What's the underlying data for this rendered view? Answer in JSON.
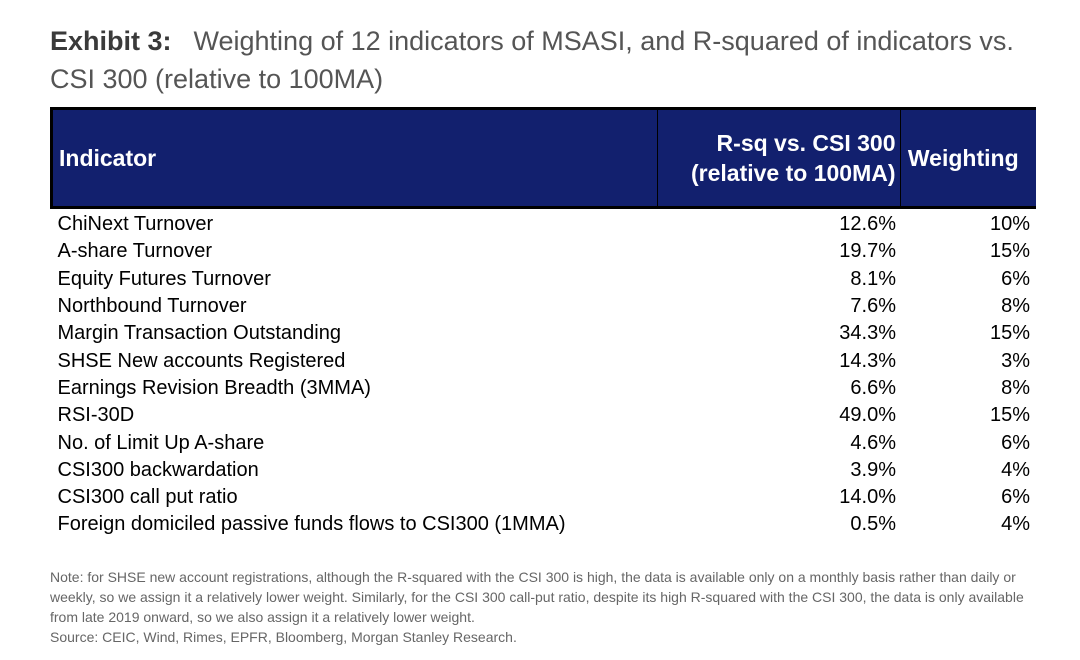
{
  "exhibit": {
    "label": "Exhibit 3:",
    "title": "Weighting of 12 indicators of MSASI, and R-squared of indicators vs. CSI 300 (relative to 100MA)"
  },
  "table": {
    "headers": {
      "indicator": "Indicator",
      "rsq_line1": "R-sq vs. CSI 300",
      "rsq_line2": "(relative to 100MA)",
      "weighting": "Weighting"
    },
    "rows": [
      {
        "indicator": "ChiNext Turnover",
        "rsq": "12.6%",
        "weighting": "10%"
      },
      {
        "indicator": "A-share Turnover",
        "rsq": "19.7%",
        "weighting": "15%"
      },
      {
        "indicator": "Equity Futures Turnover",
        "rsq": "8.1%",
        "weighting": "6%"
      },
      {
        "indicator": "Northbound Turnover",
        "rsq": "7.6%",
        "weighting": "8%"
      },
      {
        "indicator": "Margin Transaction Outstanding",
        "rsq": "34.3%",
        "weighting": "15%"
      },
      {
        "indicator": "SHSE New accounts Registered",
        "rsq": "14.3%",
        "weighting": "3%"
      },
      {
        "indicator": "Earnings Revision Breadth (3MMA)",
        "rsq": "6.6%",
        "weighting": "8%"
      },
      {
        "indicator": "RSI-30D",
        "rsq": "49.0%",
        "weighting": "15%"
      },
      {
        "indicator": "No. of Limit Up A-share",
        "rsq": "4.6%",
        "weighting": "6%"
      },
      {
        "indicator": "CSI300 backwardation",
        "rsq": "3.9%",
        "weighting": "4%"
      },
      {
        "indicator": "CSI300 call put ratio",
        "rsq": "14.0%",
        "weighting": "6%"
      },
      {
        "indicator": "Foreign domiciled passive funds flows to CSI300 (1MMA)",
        "rsq": "0.5%",
        "weighting": "4%"
      }
    ]
  },
  "footnote": {
    "note": "Note: for SHSE new account registrations, although the R-squared with the CSI 300 is high, the data is available only on a monthly basis rather than daily or weekly, so we assign it a relatively lower weight. Similarly, for the CSI 300 call-put ratio, despite its high R-squared with the CSI 300, the data is only available from late 2019 onward, so we also assign it a relatively lower weight.",
    "source": "Source: CEIC, Wind, Rimes, EPFR, Bloomberg, Morgan Stanley Research."
  }
}
